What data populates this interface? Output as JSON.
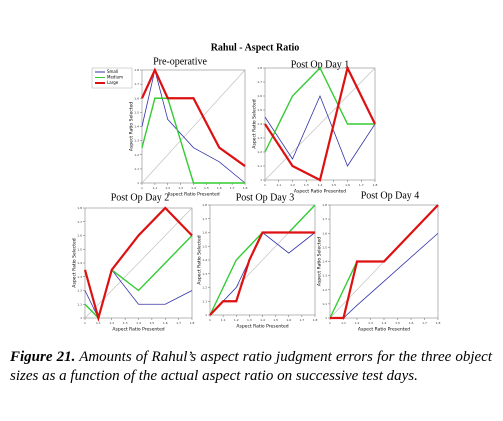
{
  "title": "Rahul - Aspect Ratio",
  "caption": {
    "label": "Figure 21.",
    "text": "Amounts of Rahul’s aspect ratio judgment errors for the three object sizes as a function of the actual aspect ratio on successive test days."
  },
  "chart_data": [
    {
      "type": "line",
      "title": "Pre-operative",
      "xlabel": "Aspect Ratio Presented",
      "ylabel": "Aspect Ratio Selected",
      "legend": "left-outside",
      "x": [
        1.0,
        1.1,
        1.2,
        1.4,
        1.6,
        1.8
      ],
      "series": [
        {
          "name": "Small",
          "color": "#3333aa",
          "values": [
            1.4,
            1.8,
            1.45,
            1.25,
            1.15,
            1.0
          ]
        },
        {
          "name": "Medium",
          "color": "#33cc33",
          "values": [
            1.25,
            1.6,
            1.6,
            1.0,
            1.0,
            1.0
          ]
        },
        {
          "name": "Large",
          "color": "#dd1111",
          "values": [
            1.6,
            1.8,
            1.6,
            1.6,
            1.25,
            1.12
          ]
        }
      ],
      "xlim": [
        1.0,
        1.8
      ],
      "ylim": [
        1.0,
        1.8
      ],
      "xticks": [
        1,
        1.1,
        1.2,
        1.3,
        1.4,
        1.5,
        1.6,
        1.7,
        1.8
      ],
      "yticks": [
        1,
        1.1,
        1.2,
        1.3,
        1.4,
        1.5,
        1.6,
        1.7,
        1.8
      ]
    },
    {
      "type": "line",
      "title": "Post Op Day 1",
      "xlabel": "Aspect Ratio Presented",
      "ylabel": "Aspect Ratio Selected",
      "x": [
        1.0,
        1.2,
        1.4,
        1.6,
        1.8
      ],
      "series": [
        {
          "color": "#3333aa",
          "values": [
            1.45,
            1.15,
            1.6,
            1.1,
            1.4
          ]
        },
        {
          "color": "#33cc33",
          "values": [
            1.2,
            1.6,
            1.8,
            1.4,
            1.4
          ]
        },
        {
          "color": "#dd1111",
          "values": [
            1.4,
            1.1,
            1.0,
            1.8,
            1.4
          ]
        }
      ],
      "xlim": [
        1.0,
        1.8
      ],
      "ylim": [
        1.0,
        1.8
      ],
      "xticks": [
        1,
        1.1,
        1.2,
        1.3,
        1.4,
        1.5,
        1.6,
        1.7,
        1.8
      ],
      "yticks": [
        1,
        1.1,
        1.2,
        1.3,
        1.4,
        1.5,
        1.6,
        1.7,
        1.8
      ]
    },
    {
      "type": "line",
      "title": "Post Op Day 2",
      "xlabel": "Aspect Ratio Presented",
      "ylabel": "Aspect Ratio Selected",
      "x": [
        1.0,
        1.1,
        1.2,
        1.4,
        1.6,
        1.8
      ],
      "series": [
        {
          "color": "#3333aa",
          "values": [
            1.2,
            1.0,
            1.35,
            1.1,
            1.1,
            1.2
          ]
        },
        {
          "color": "#33cc33",
          "values": [
            1.1,
            1.0,
            1.35,
            1.2,
            1.4,
            1.6
          ]
        },
        {
          "color": "#dd1111",
          "values": [
            1.35,
            1.0,
            1.35,
            1.6,
            1.8,
            1.6
          ]
        }
      ],
      "xlim": [
        1.0,
        1.8
      ],
      "ylim": [
        1.0,
        1.8
      ],
      "xticks": [
        1,
        1.1,
        1.2,
        1.3,
        1.4,
        1.5,
        1.6,
        1.7,
        1.8
      ],
      "yticks": [
        1,
        1.1,
        1.2,
        1.3,
        1.4,
        1.5,
        1.6,
        1.7,
        1.8
      ]
    },
    {
      "type": "line",
      "title": "Post Op Day 3",
      "xlabel": "Aspect Ratio Presented",
      "ylabel": "Aspect Ratio Selected",
      "x": [
        1.0,
        1.1,
        1.2,
        1.3,
        1.4,
        1.6,
        1.8
      ],
      "series": [
        {
          "color": "#3333aa",
          "values": [
            1.0,
            1.1,
            1.2,
            1.4,
            1.6,
            1.45,
            1.6
          ]
        },
        {
          "color": "#33cc33",
          "values": [
            1.0,
            1.2,
            1.4,
            1.5,
            1.6,
            1.6,
            1.8
          ]
        },
        {
          "color": "#dd1111",
          "values": [
            1.0,
            1.1,
            1.1,
            1.4,
            1.6,
            1.6,
            1.6
          ]
        }
      ],
      "xlim": [
        1.0,
        1.8
      ],
      "ylim": [
        1.0,
        1.8
      ],
      "xticks": [
        1,
        1.1,
        1.2,
        1.3,
        1.4,
        1.5,
        1.6,
        1.7,
        1.8
      ],
      "yticks": [
        1,
        1.1,
        1.2,
        1.3,
        1.4,
        1.5,
        1.6,
        1.7,
        1.8
      ]
    },
    {
      "type": "line",
      "title": "Post Op Day 4",
      "xlabel": "Aspect Ratio Presented",
      "ylabel": "Aspect Ratio Selected",
      "x": [
        1.0,
        1.1,
        1.2,
        1.4,
        1.8
      ],
      "series": [
        {
          "color": "#3333aa",
          "values": [
            1.0,
            1.0,
            1.09,
            1.26,
            1.6
          ]
        },
        {
          "color": "#33cc33",
          "values": [
            1.0,
            1.2,
            1.4,
            1.4,
            1.8
          ]
        },
        {
          "color": "#dd1111",
          "values": [
            1.0,
            1.0,
            1.4,
            1.4,
            1.8
          ]
        }
      ],
      "xlim": [
        1.0,
        1.8
      ],
      "ylim": [
        1.0,
        1.8
      ],
      "xticks": [
        1,
        1.1,
        1.2,
        1.3,
        1.4,
        1.5,
        1.6,
        1.7,
        1.8
      ],
      "yticks": [
        1,
        1.1,
        1.2,
        1.3,
        1.4,
        1.5,
        1.6,
        1.7,
        1.8
      ]
    }
  ]
}
